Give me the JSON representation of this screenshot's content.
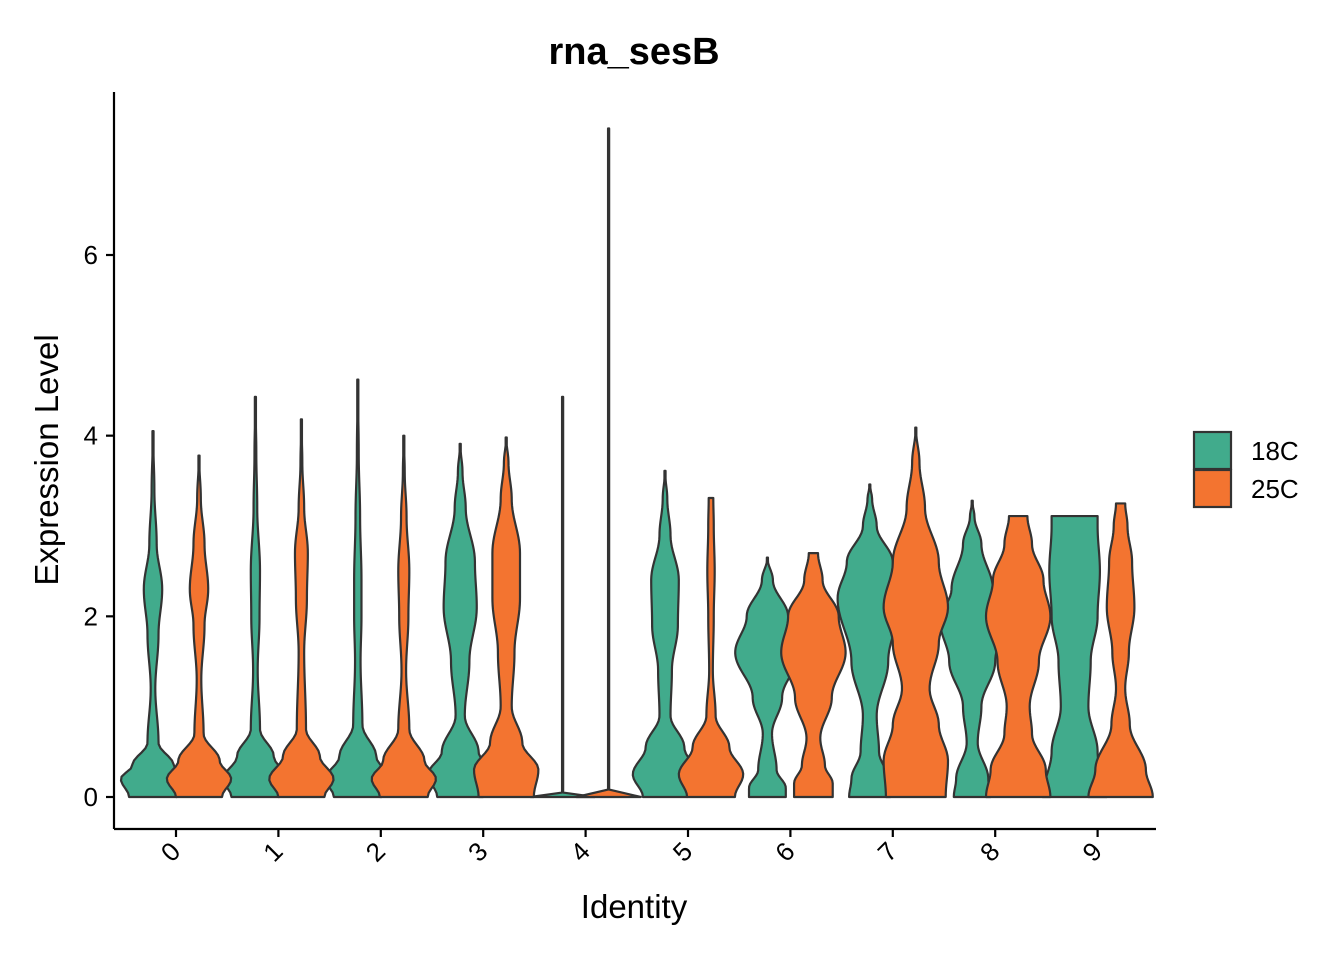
{
  "chart_data": {
    "type": "violin",
    "title": "rna_sesB",
    "xlabel": "Identity",
    "ylabel": "Expression Level",
    "ylim": [
      -0.35,
      7.8
    ],
    "yticks": [
      0,
      2,
      4,
      6
    ],
    "categories": [
      "0",
      "1",
      "2",
      "3",
      "4",
      "5",
      "6",
      "7",
      "8",
      "9"
    ],
    "legend_position": "right",
    "series": [
      {
        "name": "18C",
        "color": "#41AB8C",
        "violins": [
          {
            "max": 4.05,
            "profile": [
              [
                0,
                0.52
              ],
              [
                0.2,
                0.7
              ],
              [
                0.35,
                0.45
              ],
              [
                0.6,
                0.12
              ],
              [
                1.2,
                0.05
              ],
              [
                1.8,
                0.12
              ],
              [
                2.3,
                0.2
              ],
              [
                2.8,
                0.08
              ],
              [
                3.4,
                0.03
              ],
              [
                4.05,
                0.0
              ]
            ]
          },
          {
            "max": 4.43,
            "profile": [
              [
                0,
                0.52
              ],
              [
                0.2,
                0.7
              ],
              [
                0.45,
                0.4
              ],
              [
                0.75,
                0.1
              ],
              [
                1.4,
                0.05
              ],
              [
                2.0,
                0.09
              ],
              [
                2.5,
                0.1
              ],
              [
                3.2,
                0.04
              ],
              [
                3.8,
                0.02
              ],
              [
                4.43,
                0.0
              ]
            ]
          },
          {
            "max": 4.62,
            "profile": [
              [
                0,
                0.52
              ],
              [
                0.2,
                0.7
              ],
              [
                0.45,
                0.4
              ],
              [
                0.8,
                0.1
              ],
              [
                1.5,
                0.06
              ],
              [
                2.0,
                0.08
              ],
              [
                2.4,
                0.08
              ],
              [
                3.1,
                0.05
              ],
              [
                3.8,
                0.02
              ],
              [
                4.62,
                0.0
              ]
            ]
          },
          {
            "max": 3.91,
            "profile": [
              [
                0,
                0.5
              ],
              [
                0.25,
                0.7
              ],
              [
                0.5,
                0.4
              ],
              [
                0.9,
                0.1
              ],
              [
                1.5,
                0.2
              ],
              [
                2.1,
                0.36
              ],
              [
                2.6,
                0.32
              ],
              [
                3.2,
                0.12
              ],
              [
                3.6,
                0.05
              ],
              [
                3.91,
                0.0
              ]
            ]
          },
          {
            "max": 4.43,
            "profile": [
              [
                0,
                0.7
              ],
              [
                0.02,
                0.0
              ],
              [
                4.43,
                0.0
              ]
            ]
          },
          {
            "max": 3.61,
            "profile": [
              [
                0,
                0.48
              ],
              [
                0.25,
                0.7
              ],
              [
                0.55,
                0.42
              ],
              [
                0.9,
                0.12
              ],
              [
                1.4,
                0.15
              ],
              [
                1.9,
                0.28
              ],
              [
                2.4,
                0.3
              ],
              [
                2.9,
                0.12
              ],
              [
                3.3,
                0.05
              ],
              [
                3.61,
                0.0
              ]
            ]
          },
          {
            "max": 2.65,
            "profile": [
              [
                0,
                0.4
              ],
              [
                0.1,
                0.4
              ],
              [
                0.3,
                0.2
              ],
              [
                0.7,
                0.1
              ],
              [
                1.1,
                0.32
              ],
              [
                1.6,
                0.7
              ],
              [
                2.0,
                0.45
              ],
              [
                2.4,
                0.12
              ],
              [
                2.65,
                0.0
              ]
            ]
          },
          {
            "max": 3.46,
            "profile": [
              [
                0,
                0.45
              ],
              [
                0.2,
                0.4
              ],
              [
                0.5,
                0.2
              ],
              [
                0.9,
                0.15
              ],
              [
                1.5,
                0.4
              ],
              [
                2.2,
                0.7
              ],
              [
                2.6,
                0.5
              ],
              [
                3.0,
                0.15
              ],
              [
                3.3,
                0.05
              ],
              [
                3.46,
                0.0
              ]
            ]
          },
          {
            "max": 3.28,
            "profile": [
              [
                0,
                0.4
              ],
              [
                0.2,
                0.35
              ],
              [
                0.6,
                0.12
              ],
              [
                1.0,
                0.2
              ],
              [
                1.5,
                0.5
              ],
              [
                1.95,
                0.7
              ],
              [
                2.3,
                0.45
              ],
              [
                2.8,
                0.2
              ],
              [
                3.1,
                0.05
              ],
              [
                3.28,
                0.0
              ]
            ]
          },
          {
            "max": 3.11,
            "profile": [
              [
                0,
                0.7
              ],
              [
                0.5,
                0.5
              ],
              [
                1.0,
                0.3
              ],
              [
                1.5,
                0.35
              ],
              [
                2.0,
                0.5
              ],
              [
                2.5,
                0.55
              ],
              [
                3.0,
                0.5
              ],
              [
                3.11,
                0.5
              ]
            ]
          }
        ]
      },
      {
        "name": "25C",
        "color": "#F37430",
        "violins": [
          {
            "max": 3.78,
            "profile": [
              [
                0,
                0.5
              ],
              [
                0.2,
                0.7
              ],
              [
                0.4,
                0.45
              ],
              [
                0.7,
                0.1
              ],
              [
                1.3,
                0.05
              ],
              [
                1.9,
                0.12
              ],
              [
                2.3,
                0.2
              ],
              [
                2.8,
                0.12
              ],
              [
                3.3,
                0.04
              ],
              [
                3.78,
                0.0
              ]
            ]
          },
          {
            "max": 4.18,
            "profile": [
              [
                0,
                0.5
              ],
              [
                0.2,
                0.7
              ],
              [
                0.45,
                0.4
              ],
              [
                0.75,
                0.1
              ],
              [
                1.6,
                0.06
              ],
              [
                2.2,
                0.12
              ],
              [
                2.7,
                0.14
              ],
              [
                3.2,
                0.06
              ],
              [
                3.7,
                0.02
              ],
              [
                4.18,
                0.0
              ]
            ]
          },
          {
            "max": 4.0,
            "profile": [
              [
                0,
                0.52
              ],
              [
                0.2,
                0.7
              ],
              [
                0.4,
                0.45
              ],
              [
                0.75,
                0.12
              ],
              [
                1.4,
                0.05
              ],
              [
                2.0,
                0.1
              ],
              [
                2.5,
                0.12
              ],
              [
                3.1,
                0.06
              ],
              [
                3.6,
                0.02
              ],
              [
                4.0,
                0.0
              ]
            ]
          },
          {
            "max": 3.98,
            "profile": [
              [
                0,
                0.6
              ],
              [
                0.3,
                0.7
              ],
              [
                0.6,
                0.35
              ],
              [
                1.0,
                0.12
              ],
              [
                1.6,
                0.18
              ],
              [
                2.2,
                0.3
              ],
              [
                2.7,
                0.3
              ],
              [
                3.3,
                0.12
              ],
              [
                3.7,
                0.05
              ],
              [
                3.98,
                0.0
              ]
            ]
          },
          {
            "max": 7.4,
            "profile": [
              [
                0,
                0.7
              ],
              [
                0.02,
                0.0
              ],
              [
                7.4,
                0.0
              ]
            ]
          },
          {
            "max": 3.31,
            "profile": [
              [
                0,
                0.52
              ],
              [
                0.25,
                0.7
              ],
              [
                0.55,
                0.4
              ],
              [
                0.9,
                0.1
              ],
              [
                1.4,
                0.04
              ],
              [
                2.0,
                0.06
              ],
              [
                2.5,
                0.08
              ],
              [
                3.0,
                0.06
              ],
              [
                3.31,
                0.05
              ]
            ]
          },
          {
            "max": 2.7,
            "profile": [
              [
                0,
                0.42
              ],
              [
                0.15,
                0.42
              ],
              [
                0.35,
                0.25
              ],
              [
                0.65,
                0.15
              ],
              [
                1.1,
                0.4
              ],
              [
                1.6,
                0.7
              ],
              [
                2.0,
                0.55
              ],
              [
                2.4,
                0.2
              ],
              [
                2.7,
                0.1
              ]
            ]
          },
          {
            "max": 4.09,
            "profile": [
              [
                0,
                0.65
              ],
              [
                0.4,
                0.7
              ],
              [
                0.8,
                0.5
              ],
              [
                1.2,
                0.3
              ],
              [
                1.7,
                0.5
              ],
              [
                2.1,
                0.7
              ],
              [
                2.6,
                0.5
              ],
              [
                3.2,
                0.2
              ],
              [
                3.7,
                0.08
              ],
              [
                4.09,
                0.0
              ]
            ]
          },
          {
            "max": 3.11,
            "profile": [
              [
                0,
                0.7
              ],
              [
                0.3,
                0.6
              ],
              [
                0.7,
                0.3
              ],
              [
                1.0,
                0.25
              ],
              [
                1.5,
                0.45
              ],
              [
                2.0,
                0.7
              ],
              [
                2.4,
                0.55
              ],
              [
                2.8,
                0.3
              ],
              [
                3.11,
                0.2
              ]
            ]
          },
          {
            "max": 3.25,
            "profile": [
              [
                0,
                0.7
              ],
              [
                0.3,
                0.55
              ],
              [
                0.8,
                0.2
              ],
              [
                1.2,
                0.1
              ],
              [
                1.6,
                0.18
              ],
              [
                2.1,
                0.3
              ],
              [
                2.6,
                0.25
              ],
              [
                3.0,
                0.15
              ],
              [
                3.25,
                0.1
              ]
            ]
          }
        ]
      }
    ]
  }
}
